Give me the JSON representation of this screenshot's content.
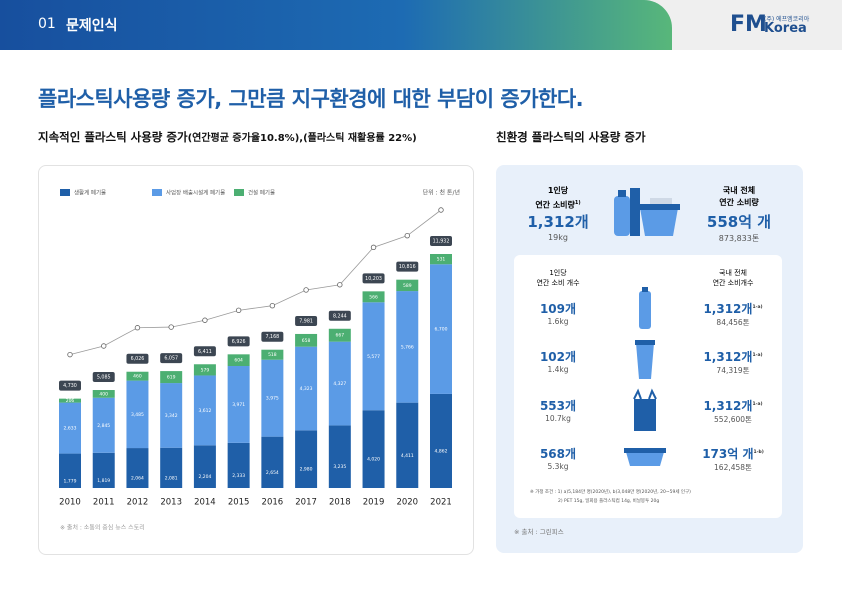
{
  "header": {
    "section": "01",
    "title": "문제인식",
    "logo": "FM",
    "logo_sub": "(주) 에프엠코리아",
    "logo_korea": "Korea"
  },
  "title": "플라스틱사용량 증가, 그만큼 지구환경에 대한 부담이 증가한다.",
  "left": {
    "subtitle": "지속적인 플라스틱 사용량 증가",
    "subtitle_note": "(연간평균 증가율10.8%),(플라스틱 재활용률 22%)",
    "source": "※ 출처 : 소통의 중심 뉴스 스토리"
  },
  "chart_data": {
    "type": "bar",
    "stacked": true,
    "unit": "단위 : 천 톤/년",
    "categories": [
      "2010",
      "2011",
      "2012",
      "2013",
      "2014",
      "2015",
      "2016",
      "2017",
      "2018",
      "2019",
      "2020",
      "2021"
    ],
    "series": [
      {
        "name": "생활계 폐기물",
        "color": "#1f5fa8",
        "values": [
          1779,
          1819,
          2064,
          2081,
          2204,
          2333,
          2654,
          2980,
          3235,
          4020,
          4411,
          4862
        ],
        "value_labels": [
          "1,779",
          "1,819",
          "2,064",
          "2,081",
          "2,204",
          "2,333",
          "2,654",
          "2,980",
          "3,235",
          "4,020",
          "4,411",
          "4,862"
        ]
      },
      {
        "name": "사업장 배출시설계 폐기물",
        "color": "#5b9be6",
        "values": [
          2633,
          2845,
          3485,
          3342,
          3612,
          3971,
          3975,
          4323,
          4327,
          5577,
          5766,
          6700
        ],
        "value_labels": [
          "2,633",
          "2,845",
          "3,485",
          "3,342",
          "3,612",
          "3,971",
          "3,975",
          "4,323",
          "4,327",
          "5,577",
          "5,766",
          "6,700"
        ]
      },
      {
        "name": "건설 폐기물",
        "color": "#4caf72",
        "values": [
          206,
          400,
          460,
          619,
          579,
          604,
          518,
          658,
          667,
          566,
          589,
          531
        ]
      }
    ],
    "totals": {
      "color": "#9a9a9a",
      "values": [
        4730,
        5085,
        6026,
        6057,
        6411,
        6926,
        7168,
        7981,
        8244,
        10203,
        10816,
        11932
      ],
      "value_labels": [
        "4,730",
        "5,085",
        "6,026",
        "6,057",
        "6,411",
        "6,926",
        "7,168",
        "7,981",
        "8,244",
        "10,203",
        "10,816",
        "11,932"
      ]
    }
  },
  "right": {
    "subtitle": "친환경 플라스틱의 사용량 증가",
    "per_capita": {
      "label1": "1인당",
      "label2": "연간 소비량",
      "sup": "1)",
      "value": "1,312개",
      "weight": "19kg"
    },
    "national": {
      "label1": "국내 전체",
      "label2": "연간 소비량",
      "value": "558억 개",
      "weight": "873,833톤"
    },
    "head_left": [
      "1인당",
      "연간 소비 개수"
    ],
    "head_right": [
      "국내 전체",
      "연간 소비개수"
    ],
    "rows": [
      {
        "count": "109개",
        "weight": "1.6kg",
        "total": "1,312개",
        "sup": "1-a)",
        "total_weight": "84,456톤"
      },
      {
        "count": "102개",
        "weight": "1.4kg",
        "total": "1,312개",
        "sup": "1-a)",
        "total_weight": "74,319톤"
      },
      {
        "count": "553개",
        "weight": "10.7kg",
        "total": "1,312개",
        "sup": "1-a)",
        "total_weight": "552,600톤"
      },
      {
        "count": "568개",
        "weight": "5.3kg",
        "total": "173억 개",
        "sup": "1-b)",
        "total_weight": "162,458톤"
      }
    ],
    "note1": "※ 가정 조건 : 1) a)5,184만 명(2020년), b)3,048만 명(2020년, 20~59세 인구)",
    "note2": "2) PET 15g, 일회용 플라스틱컵 14g, 비닐봉투 20g",
    "source": "※ 출처 : 그린피스"
  }
}
